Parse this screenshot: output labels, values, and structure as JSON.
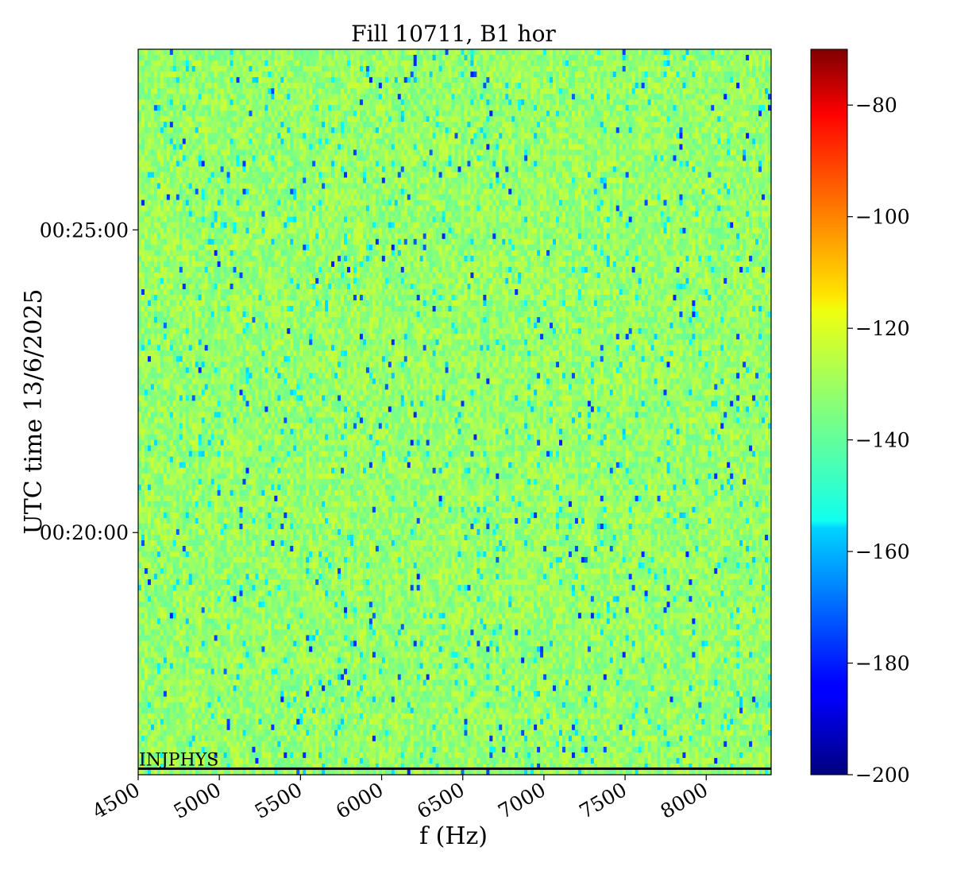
{
  "chart_data": {
    "type": "heatmap",
    "title": "Fill 10711, B1 hor",
    "xlabel": "f (Hz)",
    "ylabel": "UTC time 13/6/2025",
    "xlim": [
      4500,
      8400
    ],
    "x_ticks": [
      4500,
      5000,
      5500,
      6000,
      6500,
      7000,
      7500,
      8000
    ],
    "x_tick_labels": [
      "4500",
      "5000",
      "5500",
      "6000",
      "6500",
      "7000",
      "7500",
      "8000"
    ],
    "y_ticks": [
      "00:20:00",
      "00:25:00"
    ],
    "ylim": [
      "00:16:00",
      "00:27:59"
    ],
    "colorbar": {
      "colormap": "jet",
      "range": [
        -200,
        -70
      ],
      "ticks": [
        -200,
        -180,
        -160,
        -140,
        -120,
        -100,
        -80
      ],
      "tick_labels": [
        "−200",
        "−180",
        "−160",
        "−140",
        "−120",
        "−100",
        "−80"
      ]
    },
    "typical_value_range": [
      -150,
      -125
    ],
    "annotation": {
      "text": "INJPHYS",
      "time": "00:16:06"
    }
  }
}
